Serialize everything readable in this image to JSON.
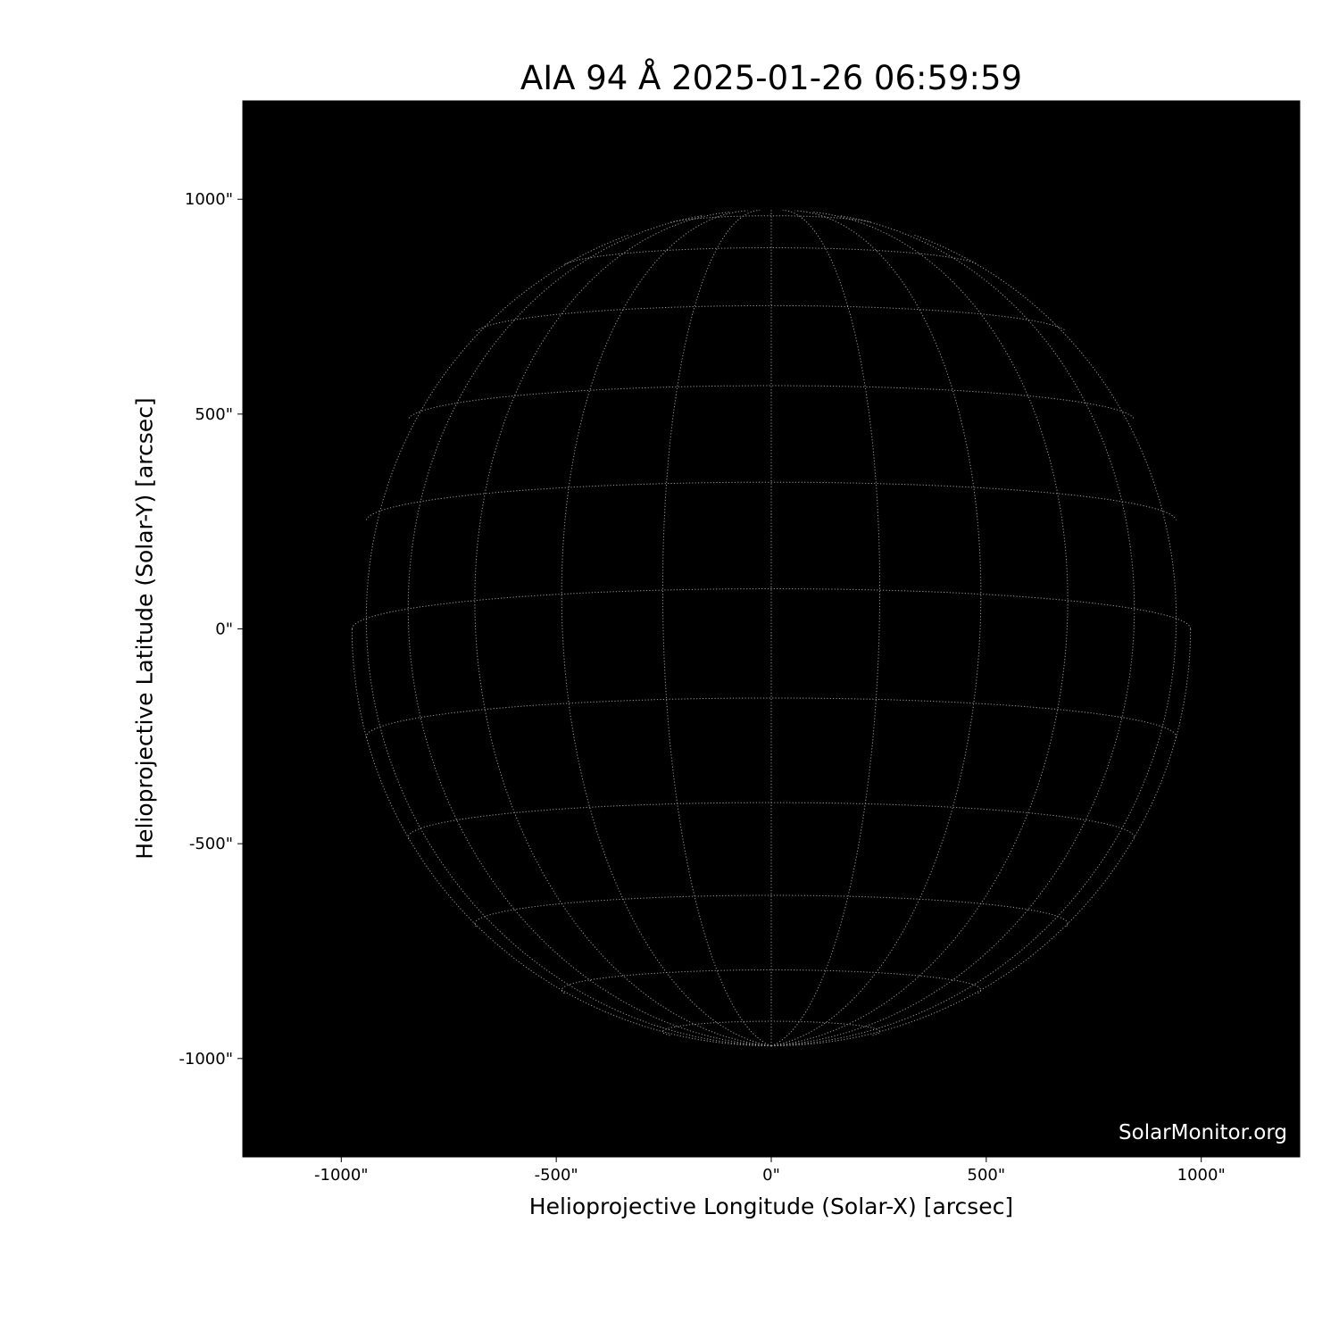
{
  "chart_data": {
    "type": "image",
    "title": "AIA 94 Å 2025-01-26 06:59:59",
    "xlabel": "Helioprojective Longitude (Solar-X) [arcsec]",
    "ylabel": "Helioprojective Latitude (Solar-Y) [arcsec]",
    "xlim": [
      -1229,
      1229
    ],
    "ylim": [
      -1229,
      1229
    ],
    "xticks": [
      -1000,
      -500,
      0,
      500,
      1000
    ],
    "yticks": [
      -1000,
      -500,
      0,
      500,
      1000
    ],
    "xtick_labels": [
      "-1000\"",
      "-500\"",
      "0\"",
      "500\"",
      "1000\""
    ],
    "ytick_labels": [
      "-1000\"",
      "-500\"",
      "0\"",
      "500\"",
      "1000\""
    ],
    "solar_radius_arcsec": 975,
    "b0_deg": -5.5,
    "grid_spacing_deg": 15,
    "background_color": "#000000",
    "grid_color": "#999999",
    "watermark": "SolarMonitor.org"
  }
}
